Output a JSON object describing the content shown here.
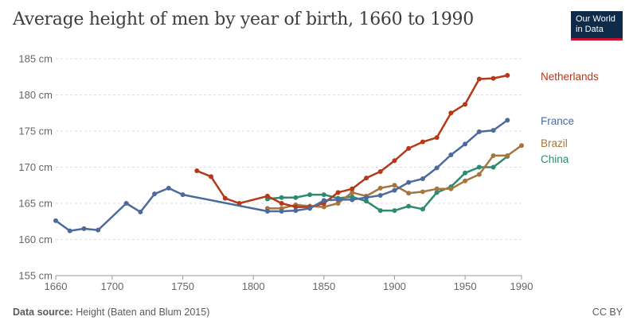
{
  "title": "Average height of men by year of birth, 1660 to 1990",
  "logo": {
    "line1": "Our World",
    "line2": "in Data"
  },
  "footer": {
    "source_label": "Data source:",
    "source_text": "Height (Baten and Blum 2015)",
    "license": "CC BY"
  },
  "chart_data": {
    "type": "line",
    "title": "Average height of men by year of birth, 1660 to 1990",
    "xlabel": "",
    "ylabel": "",
    "xlim": [
      1660,
      1990
    ],
    "ylim": [
      155,
      185
    ],
    "x_ticks": [
      1660,
      1700,
      1750,
      1800,
      1850,
      1900,
      1950,
      1990
    ],
    "y_ticks": [
      {
        "value": 155,
        "label": "155 cm"
      },
      {
        "value": 160,
        "label": "160 cm"
      },
      {
        "value": 165,
        "label": "165 cm"
      },
      {
        "value": 170,
        "label": "170 cm"
      },
      {
        "value": 175,
        "label": "175 cm"
      },
      {
        "value": 180,
        "label": "180 cm"
      },
      {
        "value": 185,
        "label": "185 cm"
      }
    ],
    "grid": "horizontal dashed",
    "series": [
      {
        "name": "China",
        "color": "#2e8b6e",
        "x": [
          1810,
          1820,
          1830,
          1840,
          1850,
          1860,
          1870,
          1880,
          1890,
          1900,
          1910,
          1920,
          1930,
          1940,
          1950,
          1960,
          1970,
          1980
        ],
        "y": [
          165.6,
          165.8,
          165.8,
          166.2,
          166.2,
          165.7,
          165.9,
          165.3,
          164.0,
          164.0,
          164.6,
          164.2,
          166.5,
          167.3,
          169.2,
          170.0,
          170.0,
          171.5
        ]
      },
      {
        "name": "Brazil",
        "color": "#a6763f",
        "x": [
          1810,
          1820,
          1830,
          1840,
          1850,
          1860,
          1870,
          1880,
          1890,
          1900,
          1910,
          1920,
          1930,
          1940,
          1950,
          1960,
          1970,
          1980,
          1990
        ],
        "y": [
          164.3,
          164.3,
          164.8,
          164.6,
          164.5,
          165.0,
          166.5,
          166.0,
          167.1,
          167.5,
          166.4,
          166.6,
          167.0,
          167.0,
          168.1,
          169.0,
          171.6,
          171.6,
          173.0
        ]
      },
      {
        "name": "Netherlands",
        "color": "#b5381a",
        "x": [
          1760,
          1770,
          1780,
          1790,
          1810,
          1820,
          1830,
          1840,
          1850,
          1860,
          1870,
          1880,
          1890,
          1900,
          1910,
          1920,
          1930,
          1940,
          1950,
          1960,
          1970,
          1980
        ],
        "y": [
          169.5,
          168.7,
          165.7,
          165.0,
          166.0,
          165.0,
          164.5,
          164.5,
          165.0,
          166.5,
          167.0,
          168.5,
          169.4,
          170.9,
          172.6,
          173.5,
          174.1,
          177.5,
          178.7,
          182.2,
          182.3,
          182.7
        ]
      },
      {
        "name": "France",
        "color": "#4c6a9c",
        "x": [
          1660,
          1670,
          1680,
          1690,
          1710,
          1720,
          1730,
          1740,
          1750,
          1810,
          1820,
          1830,
          1840,
          1850,
          1860,
          1870,
          1880,
          1890,
          1900,
          1910,
          1920,
          1930,
          1940,
          1950,
          1960,
          1970,
          1980
        ],
        "y": [
          162.6,
          161.2,
          161.5,
          161.3,
          165.0,
          163.8,
          166.3,
          167.1,
          166.2,
          163.9,
          163.9,
          164.0,
          164.3,
          165.4,
          165.5,
          165.5,
          165.8,
          166.1,
          166.8,
          167.9,
          168.4,
          169.9,
          171.7,
          173.2,
          174.9,
          175.1,
          176.5
        ]
      }
    ],
    "labels": [
      {
        "name": "Netherlands",
        "text": "Netherlands",
        "color": "#b5381a"
      },
      {
        "name": "France",
        "text": "France",
        "color": "#4c6a9c"
      },
      {
        "name": "Brazil",
        "text": "Brazil",
        "color": "#a6763f"
      },
      {
        "name": "China",
        "text": "China",
        "color": "#2e8b6e"
      }
    ]
  }
}
